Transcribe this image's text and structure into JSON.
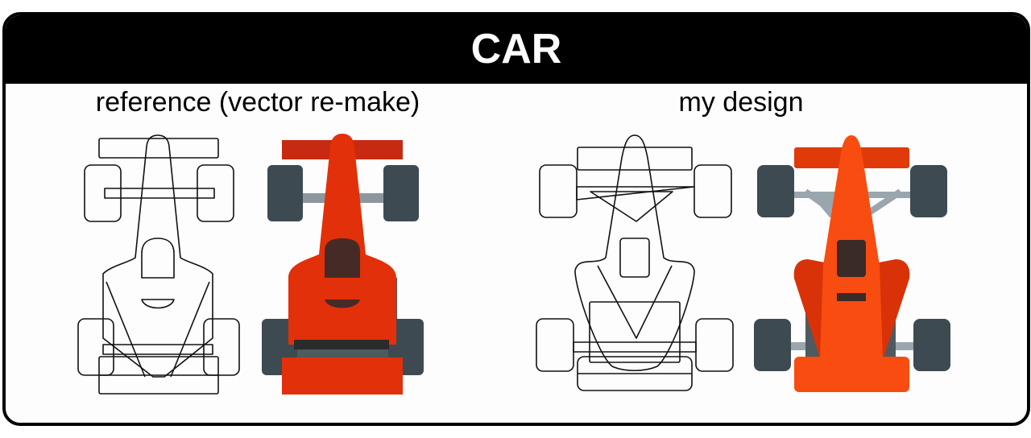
{
  "title": "CAR",
  "captions": {
    "reference": "reference (vector re-make)",
    "design": "my design"
  },
  "colors": {
    "frame": "#000000",
    "title_bar": "#000000",
    "title_text": "#ffffff",
    "ref_body": "#e2300a",
    "ref_wing": "#c62a10",
    "ref_cockpit": "#462a26",
    "design_body": "#f84c10",
    "design_side": "#d93208",
    "design_wing": "#e03a0a",
    "design_cockpit": "#3a2a28",
    "tire": "#3e4a52",
    "chassis_gray": "#4e5a60",
    "suspension": "#9aa6ae"
  },
  "icons": [
    "reference-car-outline",
    "reference-car-colored",
    "design-car-outline",
    "design-car-colored"
  ]
}
